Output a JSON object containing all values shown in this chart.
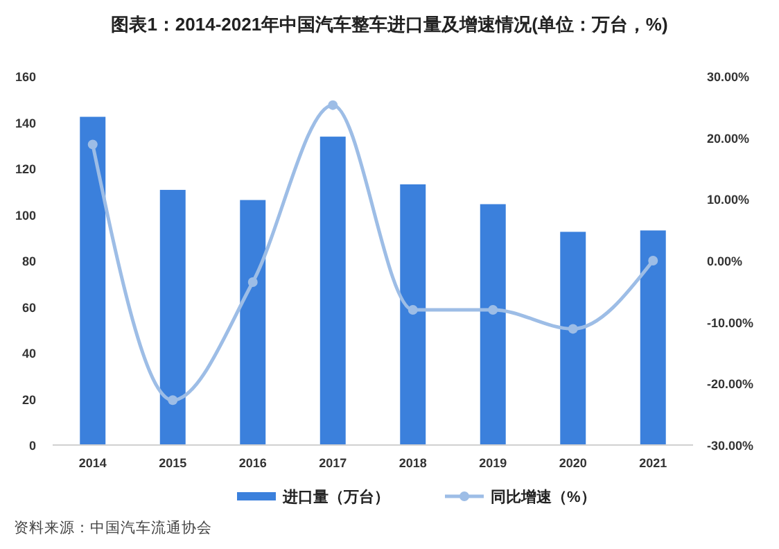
{
  "chart_data": {
    "type": "bar",
    "title": "图表1：2014-2021年中国汽车整车进口量及增速情况(单位：万台，%)",
    "categories": [
      "2014",
      "2015",
      "2016",
      "2017",
      "2018",
      "2019",
      "2020",
      "2021"
    ],
    "series": [
      {
        "name": "进口量（万台）",
        "color": "#3b80dc",
        "values": [
          142.4,
          110.7,
          106.3,
          133.8,
          113.1,
          104.5,
          92.5,
          93.1
        ]
      },
      {
        "name": "同比增速（%）",
        "type": "line",
        "axis": "y2",
        "color": "#9dbde6",
        "marker": "circle",
        "values": [
          18.9,
          -22.7,
          -3.5,
          25.3,
          -8.0,
          -8.0,
          -11.1,
          0
        ]
      }
    ],
    "ylim": [
      0,
      160
    ],
    "yticks": [
      0,
      20,
      40,
      60,
      80,
      100,
      120,
      140,
      160
    ],
    "y2lim": [
      -30,
      30
    ],
    "y2ticks": [
      {
        "value": -30,
        "label": "-30.00%"
      },
      {
        "value": -20,
        "label": "-20.00%"
      },
      {
        "value": -10,
        "label": "-10.00%"
      },
      {
        "value": 0,
        "label": "0.00%"
      },
      {
        "value": 10,
        "label": "10.00%"
      },
      {
        "value": 20,
        "label": "20.00%"
      },
      {
        "value": 30,
        "label": "30.00%"
      }
    ],
    "legend": "bottom",
    "grid": false,
    "annotations": [
      "资料来源：中国汽车流通协会"
    ]
  }
}
